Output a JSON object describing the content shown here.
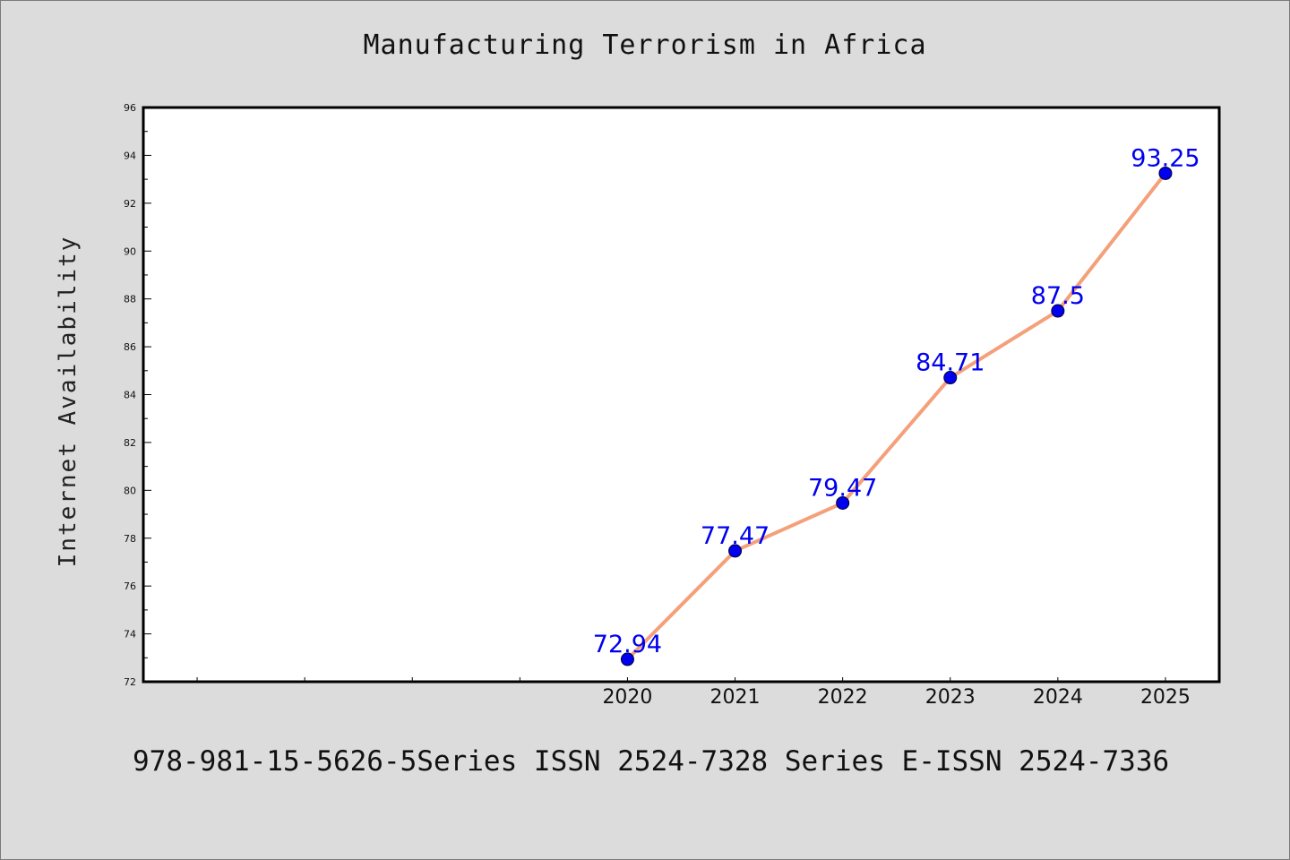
{
  "chart_data": {
    "type": "line",
    "title": "Manufacturing Terrorism in Africa",
    "xlabel": "",
    "ylabel": "Internet Availability",
    "x": [
      2020,
      2021,
      2022,
      2023,
      2024,
      2025
    ],
    "x_tick_labels": [
      "2020",
      "2021",
      "2022",
      "2023",
      "2024",
      "2025"
    ],
    "series": [
      {
        "values": [
          72.94,
          77.47,
          79.47,
          84.71,
          87.5,
          93.25
        ],
        "labels": [
          "72.94",
          "77.47",
          "79.47",
          "84.71",
          "87.5",
          "93.25"
        ],
        "line_color": "#f4a07a",
        "marker_color": "#0000ee"
      }
    ],
    "ylim": [
      72,
      96
    ],
    "xlim": [
      2015.5,
      2025.5
    ],
    "y_ticks": [
      72,
      74,
      76,
      78,
      80,
      82,
      84,
      86,
      88,
      90,
      92,
      94,
      96
    ],
    "grid": false,
    "legend": "none"
  },
  "footer": {
    "text": "978-981-15-5626-5Series ISSN 2524-7328 Series E-ISSN 2524-7336"
  },
  "colors": {
    "background": "#dcdcdc",
    "plot_background": "#ffffff",
    "data_label": "#0000ee"
  }
}
